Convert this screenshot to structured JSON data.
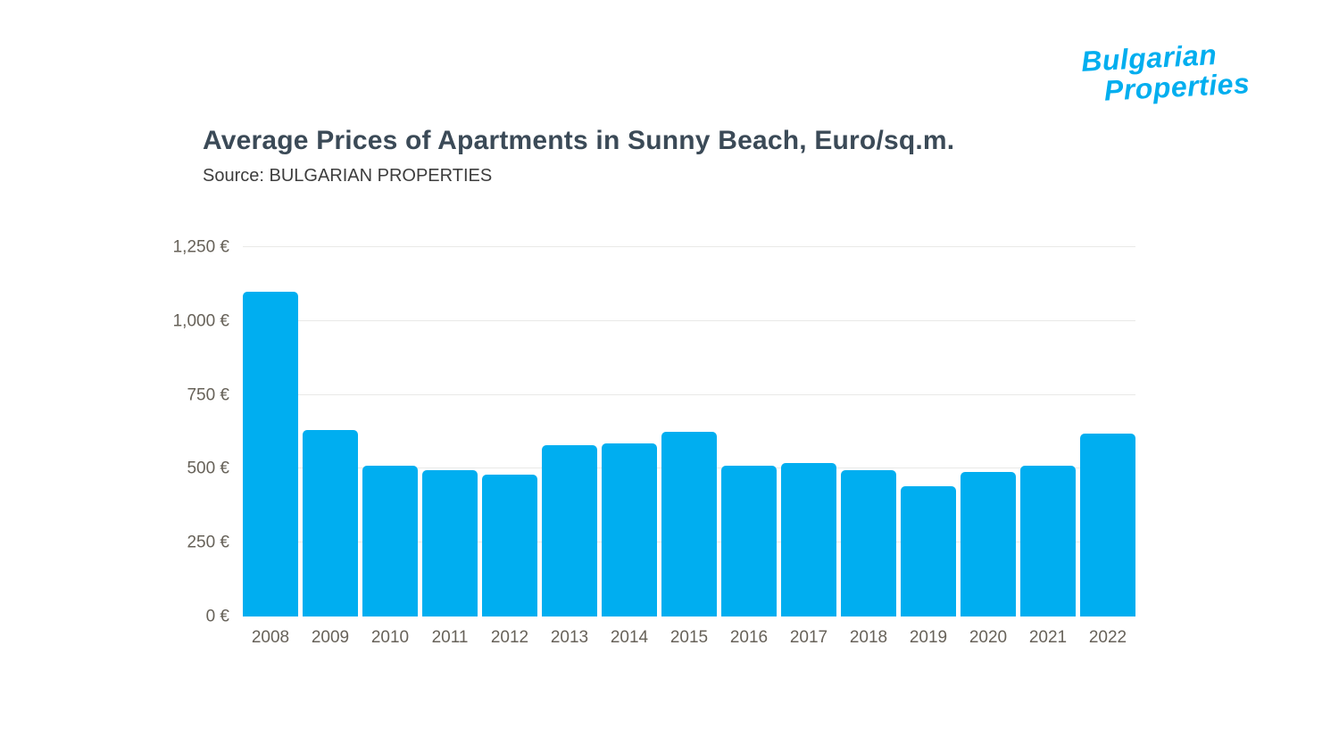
{
  "logo": {
    "line1": "Bulgarian",
    "line2": "Properties",
    "color": "#00AEEF"
  },
  "chart_data": {
    "type": "bar",
    "title": "Average Prices of Apartments in Sunny Beach, Euro/sq.m.",
    "source": "Source: BULGARIAN PROPERTIES",
    "categories": [
      "2008",
      "2009",
      "2010",
      "2011",
      "2012",
      "2013",
      "2014",
      "2015",
      "2016",
      "2017",
      "2018",
      "2019",
      "2020",
      "2021",
      "2022"
    ],
    "values": [
      1100,
      630,
      510,
      495,
      480,
      580,
      585,
      625,
      510,
      520,
      495,
      440,
      490,
      510,
      620
    ],
    "xlabel": "",
    "ylabel": "",
    "ylim": [
      0,
      1250
    ],
    "yticks": [
      0,
      250,
      500,
      750,
      1000,
      1250
    ],
    "ytick_labels": [
      "0 €",
      "250 €",
      "500 €",
      "750 €",
      "1,000 €",
      "1,250 €"
    ],
    "bar_color": "#00AEF0",
    "grid": true,
    "legend": false
  }
}
